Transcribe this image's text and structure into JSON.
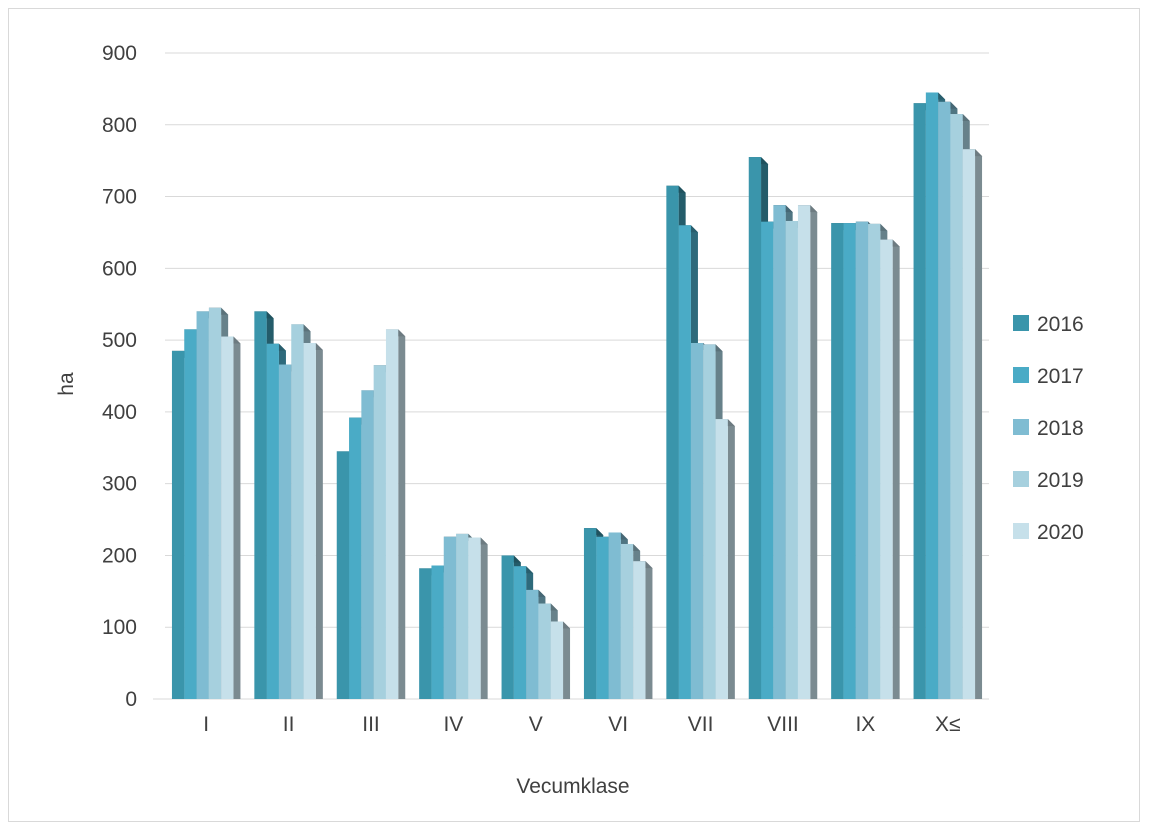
{
  "chart_data": {
    "type": "bar",
    "title": "",
    "xlabel": "Vecumklase",
    "ylabel": "ha",
    "ylim": [
      0,
      900
    ],
    "yticks": [
      0,
      100,
      200,
      300,
      400,
      500,
      600,
      700,
      800,
      900
    ],
    "grid": true,
    "legend_position": "right",
    "categories": [
      "I",
      "II",
      "III",
      "IV",
      "V",
      "VI",
      "VII",
      "VIII",
      "IX",
      "X≤"
    ],
    "series": [
      {
        "name": "2016",
        "color": "#3a95ab",
        "values": [
          485,
          540,
          345,
          182,
          200,
          238,
          715,
          755,
          663,
          830
        ]
      },
      {
        "name": "2017",
        "color": "#4aabc6",
        "values": [
          515,
          495,
          392,
          186,
          185,
          226,
          660,
          665,
          663,
          845
        ]
      },
      {
        "name": "2018",
        "color": "#7fbcd2",
        "values": [
          540,
          466,
          430,
          226,
          152,
          232,
          496,
          688,
          665,
          832
        ]
      },
      {
        "name": "2019",
        "color": "#a6d0de",
        "values": [
          545,
          522,
          465,
          230,
          133,
          216,
          494,
          666,
          662,
          815
        ]
      },
      {
        "name": "2020",
        "color": "#c6e0ea",
        "values": [
          505,
          496,
          515,
          225,
          108,
          192,
          390,
          688,
          640,
          766
        ]
      }
    ]
  }
}
